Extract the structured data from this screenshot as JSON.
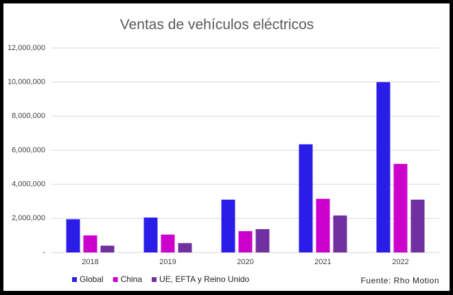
{
  "chart_data": {
    "type": "bar",
    "title": "Ventas de vehículos eléctricos",
    "categories": [
      "2018",
      "2019",
      "2020",
      "2021",
      "2022"
    ],
    "series": [
      {
        "name": "Global",
        "color": "#2b1de8",
        "values": [
          1950000,
          2050000,
          3100000,
          6350000,
          10000000
        ]
      },
      {
        "name": "China",
        "color": "#cc00cc",
        "values": [
          1000000,
          1050000,
          1250000,
          3150000,
          5200000
        ]
      },
      {
        "name": "UE, EFTA y Reino Unido",
        "color": "#7030a0",
        "values": [
          400000,
          550000,
          1370000,
          2170000,
          3100000
        ]
      }
    ],
    "ylim": [
      0,
      12000000
    ],
    "yticks": [
      {
        "value": 0,
        "label": "-"
      },
      {
        "value": 2000000,
        "label": "2,000,000"
      },
      {
        "value": 4000000,
        "label": "4,000,000"
      },
      {
        "value": 6000000,
        "label": "6,000,000"
      },
      {
        "value": 8000000,
        "label": "8,000,000"
      },
      {
        "value": 10000000,
        "label": "10,000,000"
      },
      {
        "value": 12000000,
        "label": "12,000,000"
      }
    ],
    "grid": true,
    "legend": "bottom-left",
    "source": "Fuente: Rho Motion"
  }
}
